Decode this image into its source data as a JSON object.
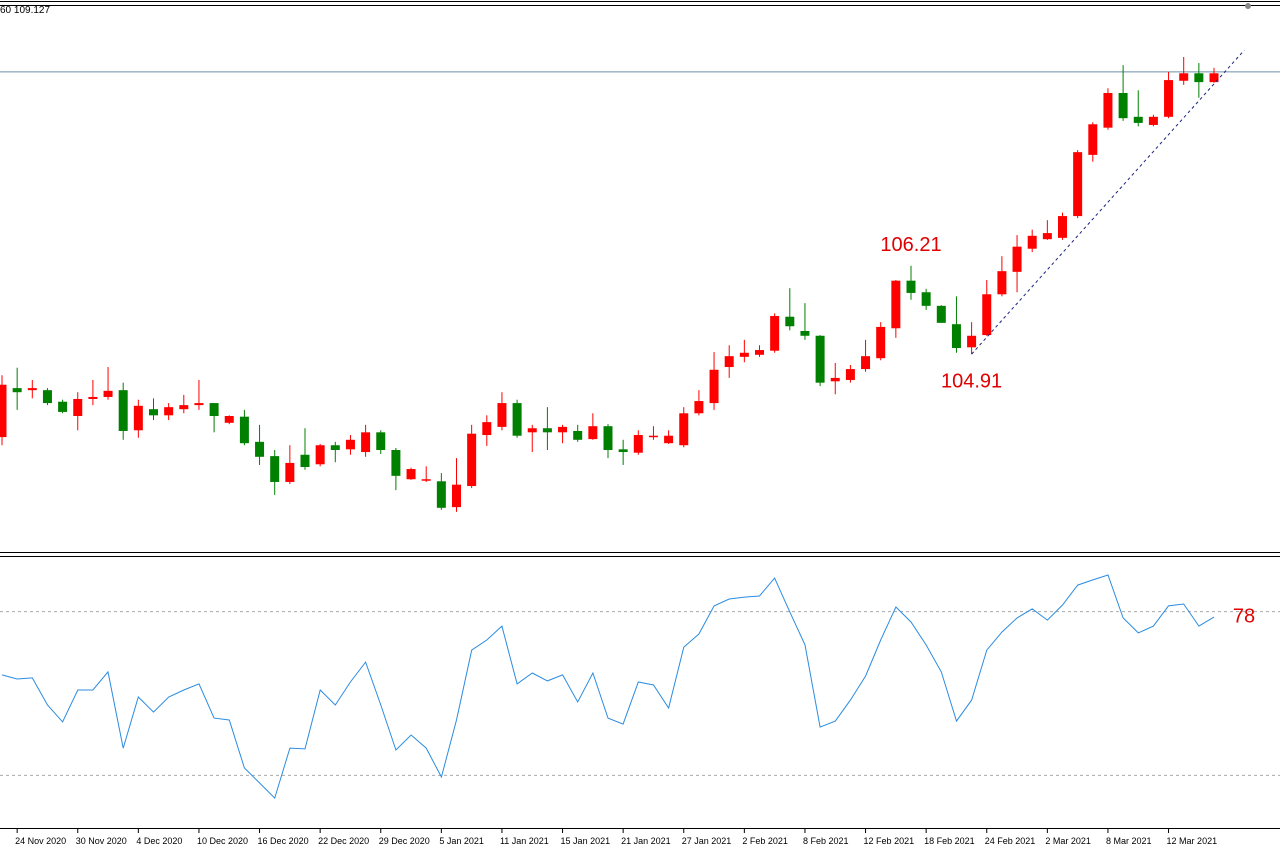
{
  "chart_data": [
    {
      "type": "candlestick",
      "title": "60 109.127",
      "categories": [
        null,
        "24 Nov 2020",
        null,
        null,
        null,
        "30 Nov 2020",
        null,
        null,
        null,
        "4 Dec 2020",
        null,
        null,
        null,
        "10 Dec 2020",
        null,
        null,
        null,
        "16 Dec 2020",
        null,
        null,
        null,
        "22 Dec 2020",
        null,
        null,
        null,
        "29 Dec 2020",
        null,
        null,
        null,
        "5 Jan 2021",
        null,
        null,
        null,
        "11 Jan 2021",
        null,
        null,
        null,
        "15 Jan 2021",
        null,
        null,
        null,
        "21 Jan 2021",
        null,
        null,
        null,
        "27 Jan 2021",
        null,
        null,
        null,
        "2 Feb 2021",
        null,
        null,
        null,
        "8 Feb 2021",
        null,
        null,
        null,
        "12 Feb 2021",
        null,
        null,
        null,
        "18 Feb 2021",
        null,
        null,
        null,
        "24 Feb 2021",
        null,
        null,
        null,
        "2 Mar 2021",
        null,
        null,
        null,
        "8 Mar 2021",
        null,
        null,
        null,
        "12 Mar 2021",
        null,
        null,
        null
      ],
      "open": [
        103.69,
        104.41,
        104.38,
        104.38,
        104.21,
        104.0,
        104.25,
        104.28,
        104.38,
        103.79,
        104.1,
        104.01,
        104.1,
        104.16,
        104.19,
        103.9,
        103.99,
        103.62,
        103.41,
        103.03,
        103.43,
        103.29,
        103.57,
        103.51,
        103.47,
        103.76,
        103.5,
        103.07,
        103.06,
        103.04,
        102.66,
        102.97,
        103.72,
        103.84,
        104.19,
        103.76,
        103.82,
        103.76,
        103.78,
        103.66,
        103.85,
        103.51,
        103.46,
        103.69,
        103.6,
        103.57,
        104.04,
        104.19,
        104.72,
        104.87,
        104.9,
        104.96,
        105.46,
        105.25,
        105.18,
        104.51,
        104.53,
        104.69,
        104.85,
        105.29,
        105.99,
        105.82,
        105.62,
        105.35,
        105.01,
        105.19,
        105.79,
        106.12,
        106.46,
        106.6,
        106.62,
        106.94,
        107.84,
        108.24,
        108.75,
        108.4,
        108.28,
        108.4,
        108.93,
        109.04,
        108.91
      ],
      "high": [
        104.6,
        104.71,
        104.53,
        104.41,
        104.24,
        104.35,
        104.53,
        104.72,
        104.49,
        104.24,
        104.26,
        104.19,
        104.31,
        104.53,
        104.19,
        104.01,
        104.09,
        103.87,
        103.5,
        103.57,
        103.82,
        103.59,
        103.62,
        103.72,
        103.87,
        103.79,
        103.53,
        103.24,
        103.26,
        103.16,
        103.38,
        103.87,
        104.01,
        104.35,
        104.24,
        103.87,
        104.13,
        103.87,
        103.87,
        104.04,
        103.88,
        103.65,
        103.79,
        103.85,
        103.79,
        104.13,
        104.38,
        104.94,
        105.04,
        105.12,
        105.04,
        105.51,
        105.88,
        105.66,
        105.19,
        104.78,
        104.75,
        105.12,
        105.38,
        106.0,
        106.21,
        105.87,
        105.63,
        105.76,
        105.38,
        106.0,
        106.35,
        106.66,
        106.74,
        106.88,
        106.99,
        107.91,
        108.32,
        108.82,
        109.16,
        108.79,
        108.43,
        109.06,
        109.28,
        109.19,
        109.12
      ],
      "low": [
        103.57,
        104.09,
        104.26,
        104.16,
        104.04,
        103.79,
        104.16,
        104.24,
        103.65,
        103.68,
        103.94,
        103.94,
        104.04,
        104.09,
        103.76,
        103.88,
        103.57,
        103.28,
        102.84,
        103.0,
        103.21,
        103.26,
        103.32,
        103.43,
        103.4,
        103.44,
        102.91,
        103.06,
        103.03,
        102.62,
        102.59,
        102.94,
        103.56,
        103.79,
        103.68,
        103.47,
        103.5,
        103.6,
        103.62,
        103.65,
        103.38,
        103.28,
        103.43,
        103.65,
        103.59,
        103.54,
        104.01,
        104.09,
        104.56,
        104.79,
        104.87,
        104.93,
        105.26,
        105.12,
        104.44,
        104.32,
        104.49,
        104.65,
        104.82,
        105.15,
        105.71,
        105.56,
        105.37,
        104.93,
        104.91,
        105.18,
        105.76,
        105.82,
        106.41,
        106.59,
        106.59,
        106.91,
        107.74,
        108.21,
        108.34,
        108.26,
        108.26,
        108.38,
        108.87,
        108.68,
        108.9
      ],
      "close": [
        104.46,
        104.35,
        104.41,
        104.19,
        104.06,
        104.25,
        104.28,
        104.37,
        103.78,
        104.15,
        104.01,
        104.13,
        104.16,
        104.19,
        104.0,
        104.0,
        103.6,
        103.4,
        103.03,
        103.31,
        103.25,
        103.57,
        103.5,
        103.65,
        103.76,
        103.5,
        103.12,
        103.22,
        103.07,
        102.65,
        102.99,
        103.74,
        103.91,
        104.19,
        103.71,
        103.82,
        103.76,
        103.84,
        103.65,
        103.85,
        103.5,
        103.47,
        103.72,
        103.71,
        103.71,
        104.04,
        104.22,
        104.68,
        104.88,
        104.93,
        104.97,
        105.47,
        105.32,
        105.18,
        104.49,
        104.56,
        104.69,
        104.88,
        105.31,
        105.99,
        105.81,
        105.62,
        105.37,
        105.0,
        105.18,
        105.79,
        106.13,
        106.49,
        106.65,
        106.69,
        106.94,
        107.88,
        108.29,
        108.75,
        108.38,
        108.31,
        108.4,
        108.94,
        109.04,
        108.91,
        109.04
      ],
      "up_color": "#ff0000",
      "down_color": "#008000",
      "ylim": [
        102,
        110
      ],
      "price_line": 109.06,
      "price_line_color": "#6f8fa6",
      "trendline": {
        "x": [
          64,
          82
        ],
        "y": [
          104.91,
          109.38
        ],
        "color": "#1a237e"
      },
      "annotations": [
        {
          "text": "106.21",
          "index": 60,
          "at": "high"
        },
        {
          "text": "104.91",
          "index": 64,
          "at": "low"
        }
      ]
    },
    {
      "type": "line",
      "values": [
        56.8,
        55.3,
        55.7,
        45.8,
        39.6,
        51.3,
        51.3,
        57.9,
        30.0,
        48.7,
        43.2,
        48.7,
        51.3,
        53.5,
        41.0,
        40.3,
        22.7,
        17.2,
        11.7,
        30.0,
        29.7,
        51.3,
        45.8,
        54.2,
        61.5,
        45.8,
        29.3,
        34.8,
        30.0,
        19.4,
        40.3,
        65.9,
        69.6,
        74.7,
        53.5,
        57.5,
        54.6,
        56.8,
        46.9,
        57.5,
        41.0,
        38.8,
        54.2,
        53.1,
        44.7,
        67.0,
        71.8,
        82.1,
        84.6,
        85.3,
        85.7,
        92.3,
        79.9,
        67.8,
        37.7,
        39.9,
        47.6,
        56.4,
        69.6,
        81.7,
        76.2,
        67.8,
        57.9,
        39.9,
        47.6,
        65.9,
        72.5,
        77.7,
        81.0,
        76.9,
        82.4,
        89.7,
        91.6,
        93.4,
        77.7,
        72.2,
        74.7,
        82.1,
        82.8,
        74.7,
        78.0
      ],
      "color": "#2b8ce0",
      "ylim": [
        0,
        100
      ],
      "levels": [
        20,
        80
      ],
      "annotation": "78"
    }
  ]
}
